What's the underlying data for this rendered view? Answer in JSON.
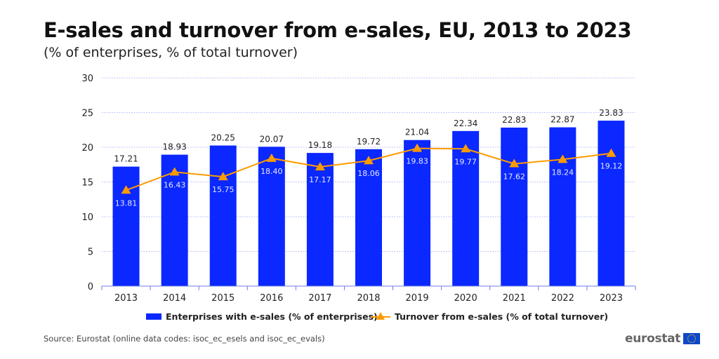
{
  "title": "E-sales and turnover from e-sales, EU, 2013 to 2023",
  "subtitle": "(% of enterprises, % of total turnover)",
  "source": "Source: Eurostat (online data codes: isoc_ec_esels and isoc_ec_evals)",
  "logo": "eurostat",
  "chart_data": {
    "type": "bar",
    "categories": [
      "2013",
      "2014",
      "2015",
      "2016",
      "2017",
      "2018",
      "2019",
      "2020",
      "2021",
      "2022",
      "2023"
    ],
    "series": [
      {
        "name": "Enterprises with e-sales (% of enterprises)",
        "type": "bar",
        "color": "#0a28ff",
        "values": [
          17.21,
          18.93,
          20.25,
          20.07,
          19.18,
          19.72,
          21.04,
          22.34,
          22.83,
          22.87,
          23.83
        ]
      },
      {
        "name": "Turnover from e-sales (% of total turnover)",
        "type": "line",
        "marker": "triangle",
        "color": "#ff9b00",
        "values": [
          13.81,
          16.43,
          15.75,
          18.4,
          17.17,
          18.06,
          19.83,
          19.77,
          17.62,
          18.24,
          19.12
        ]
      }
    ],
    "yticks": [
      0,
      5,
      10,
      15,
      20,
      25,
      30
    ],
    "ylim": [
      0,
      30
    ],
    "grid": true,
    "legend": "bottom"
  }
}
